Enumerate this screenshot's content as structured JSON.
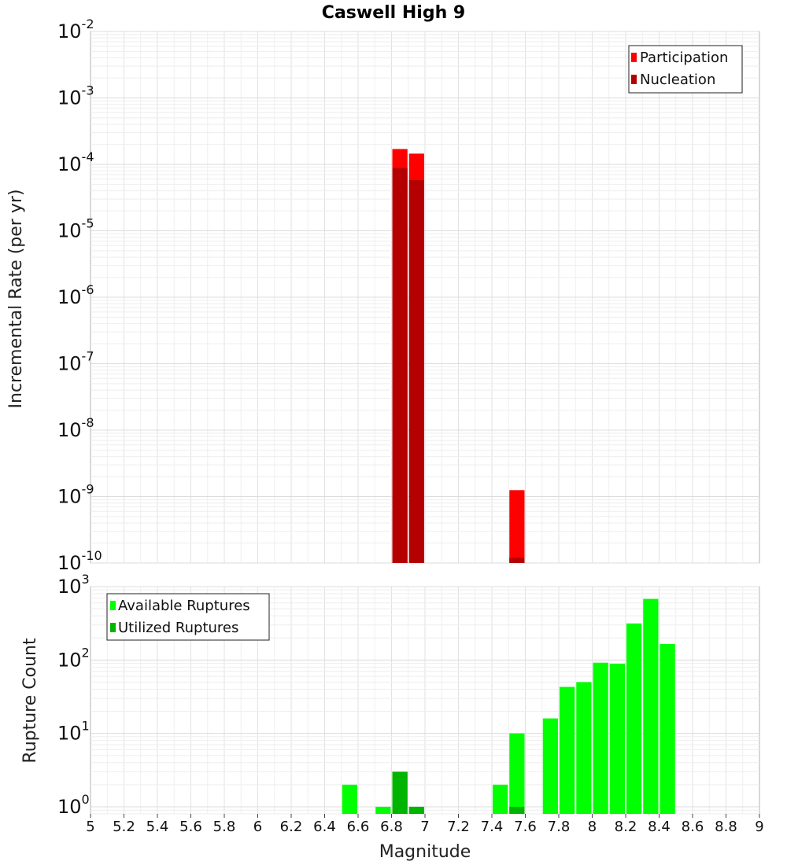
{
  "chart_data": [
    {
      "type": "bar",
      "title": "Caswell High 9",
      "xlabel": "",
      "ylabel": "Incremental Rate (per yr)",
      "yscale": "log",
      "ylim": [
        1e-10,
        0.01
      ],
      "xlim": [
        5,
        9
      ],
      "legend_placement": "top-right",
      "y_ticks": [
        {
          "base": "10",
          "exp": "-10"
        },
        {
          "base": "10",
          "exp": "-9"
        },
        {
          "base": "10",
          "exp": "-8"
        },
        {
          "base": "10",
          "exp": "-7"
        },
        {
          "base": "10",
          "exp": "-6"
        },
        {
          "base": "10",
          "exp": "-5"
        },
        {
          "base": "10",
          "exp": "-4"
        },
        {
          "base": "10",
          "exp": "-3"
        },
        {
          "base": "10",
          "exp": "-2"
        }
      ],
      "series": [
        {
          "name": "Participation",
          "color": "#ff0000",
          "points": [
            {
              "x": 6.85,
              "y": 0.00017
            },
            {
              "x": 6.95,
              "y": 0.000145
            },
            {
              "x": 7.55,
              "y": 1.25e-09
            }
          ]
        },
        {
          "name": "Nucleation",
          "color": "#b40000",
          "points": [
            {
              "x": 6.85,
              "y": 8.8e-05
            },
            {
              "x": 6.95,
              "y": 5.8e-05
            },
            {
              "x": 7.55,
              "y": 1.2e-10
            }
          ]
        }
      ]
    },
    {
      "type": "bar",
      "title": "",
      "xlabel": "Magnitude",
      "ylabel": "Rupture Count",
      "yscale": "log",
      "ylim": [
        0.8,
        1000
      ],
      "xlim": [
        5,
        9
      ],
      "legend_placement": "top-left",
      "x_ticks": [
        "5",
        "5.2",
        "5.4",
        "5.6",
        "5.8",
        "6",
        "6.2",
        "6.4",
        "6.6",
        "6.8",
        "7",
        "7.2",
        "7.4",
        "7.6",
        "7.8",
        "8",
        "8.2",
        "8.4",
        "8.6",
        "8.8",
        "9"
      ],
      "y_ticks": [
        {
          "base": "10",
          "exp": "0"
        },
        {
          "base": "10",
          "exp": "1"
        },
        {
          "base": "10",
          "exp": "2"
        },
        {
          "base": "10",
          "exp": "3"
        }
      ],
      "series": [
        {
          "name": "Available Ruptures",
          "color": "#00ff00",
          "points": [
            {
              "x": 6.55,
              "y": 2
            },
            {
              "x": 6.75,
              "y": 1
            },
            {
              "x": 6.85,
              "y": 3
            },
            {
              "x": 6.95,
              "y": 1
            },
            {
              "x": 7.45,
              "y": 2
            },
            {
              "x": 7.55,
              "y": 10
            },
            {
              "x": 7.75,
              "y": 16
            },
            {
              "x": 7.85,
              "y": 43
            },
            {
              "x": 7.95,
              "y": 50
            },
            {
              "x": 8.05,
              "y": 92
            },
            {
              "x": 8.15,
              "y": 89
            },
            {
              "x": 8.25,
              "y": 315
            },
            {
              "x": 8.35,
              "y": 680
            },
            {
              "x": 8.45,
              "y": 165
            }
          ]
        },
        {
          "name": "Utilized Ruptures",
          "color": "#00b400",
          "points": [
            {
              "x": 6.85,
              "y": 3
            },
            {
              "x": 6.95,
              "y": 1
            },
            {
              "x": 7.55,
              "y": 1
            }
          ]
        }
      ]
    }
  ]
}
